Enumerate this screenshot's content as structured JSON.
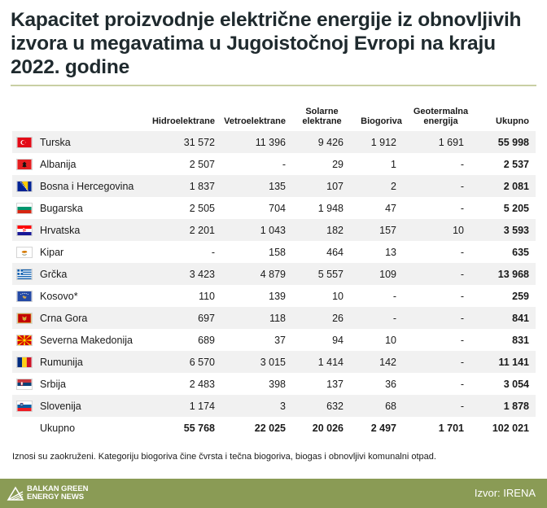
{
  "title": "Kapacitet proizvodnje električne energije iz obnovljivih izvora u megavatima u Jugoistočnoj Evropi na kraju 2022. godine",
  "columns": {
    "hydro": "Hidroelektrane",
    "wind": "Vetroelektrane",
    "solar": "Solarne elektrane",
    "bio": "Biogoriva",
    "geo": "Geotermalna energija",
    "total": "Ukupno"
  },
  "rows": [
    {
      "country": "Turska",
      "flag": "turkey-flag",
      "hydro": "31 572",
      "wind": "11 396",
      "solar": "9 426",
      "bio": "1 912",
      "geo": "1 691",
      "total": "55 998"
    },
    {
      "country": "Albanija",
      "flag": "albania-flag",
      "hydro": "2 507",
      "wind": "-",
      "solar": "29",
      "bio": "1",
      "geo": "-",
      "total": "2 537"
    },
    {
      "country": "Bosna i Hercegovina",
      "flag": "bosnia-flag",
      "hydro": "1 837",
      "wind": "135",
      "solar": "107",
      "bio": "2",
      "geo": "-",
      "total": "2 081"
    },
    {
      "country": "Bugarska",
      "flag": "bulgaria-flag",
      "hydro": "2 505",
      "wind": "704",
      "solar": "1 948",
      "bio": "47",
      "geo": "-",
      "total": "5 205"
    },
    {
      "country": "Hrvatska",
      "flag": "croatia-flag",
      "hydro": "2 201",
      "wind": "1 043",
      "solar": "182",
      "bio": "157",
      "geo": "10",
      "total": "3 593"
    },
    {
      "country": "Kipar",
      "flag": "cyprus-flag",
      "hydro": "-",
      "wind": "158",
      "solar": "464",
      "bio": "13",
      "geo": "-",
      "total": "635"
    },
    {
      "country": "Grčka",
      "flag": "greece-flag",
      "hydro": "3 423",
      "wind": "4 879",
      "solar": "5 557",
      "bio": "109",
      "geo": "-",
      "total": "13 968"
    },
    {
      "country": "Kosovo*",
      "flag": "kosovo-flag",
      "hydro": "110",
      "wind": "139",
      "solar": "10",
      "bio": "-",
      "geo": "-",
      "total": "259"
    },
    {
      "country": "Crna Gora",
      "flag": "montenegro-flag",
      "hydro": "697",
      "wind": "118",
      "solar": "26",
      "bio": "-",
      "geo": "-",
      "total": "841"
    },
    {
      "country": "Severna Makedonija",
      "flag": "north-macedonia-flag",
      "hydro": "689",
      "wind": "37",
      "solar": "94",
      "bio": "10",
      "geo": "-",
      "total": "831"
    },
    {
      "country": "Rumunija",
      "flag": "romania-flag",
      "hydro": "6 570",
      "wind": "3 015",
      "solar": "1 414",
      "bio": "142",
      "geo": "-",
      "total": "11 141"
    },
    {
      "country": "Srbija",
      "flag": "serbia-flag",
      "hydro": "2 483",
      "wind": "398",
      "solar": "137",
      "bio": "36",
      "geo": "-",
      "total": "3 054"
    },
    {
      "country": "Slovenija",
      "flag": "slovenia-flag",
      "hydro": "1 174",
      "wind": "3",
      "solar": "632",
      "bio": "68",
      "geo": "-",
      "total": "1 878"
    }
  ],
  "totals": {
    "label": "Ukupno",
    "hydro": "55 768",
    "wind": "22 025",
    "solar": "20 026",
    "bio": "2 497",
    "geo": "1 701",
    "total": "102 021"
  },
  "note": "Iznosi su zaokruženi. Kategoriju biogoriva čine čvrsta i tečna biogoriva, biogas i obnovljivi komunalni otpad.",
  "footer": {
    "logo_line1": "BALKAN GREEN",
    "logo_line2": "ENERGY NEWS",
    "source": "Izvor: IRENA"
  },
  "colors": {
    "footer": "#8a9b55",
    "rule": "#c9cfa4",
    "row_shade": "#f1f1f1"
  }
}
